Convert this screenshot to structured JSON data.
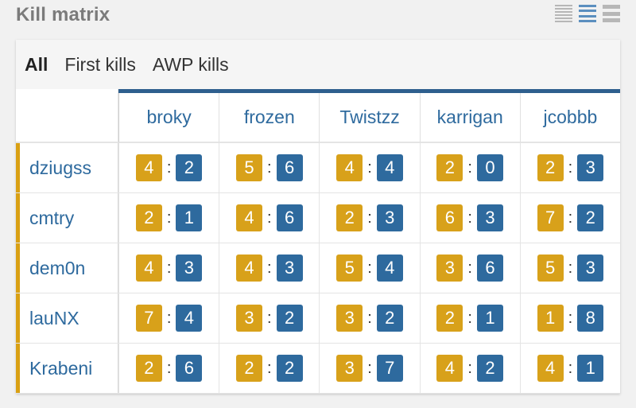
{
  "header": {
    "title": "Kill matrix",
    "view_icons": [
      "list-dense-icon",
      "list-medium-icon",
      "list-wide-icon"
    ]
  },
  "tabs": [
    {
      "label": "All",
      "active": true
    },
    {
      "label": "First kills",
      "active": false
    },
    {
      "label": "AWP kills",
      "active": false
    }
  ],
  "matrix": {
    "columns": [
      "broky",
      "frozen",
      "Twistzz",
      "karrigan",
      "jcobbb"
    ],
    "rows": [
      {
        "player": "dziugss",
        "cells": [
          [
            4,
            2
          ],
          [
            5,
            6
          ],
          [
            4,
            4
          ],
          [
            2,
            0
          ],
          [
            2,
            3
          ]
        ]
      },
      {
        "player": "cmtry",
        "cells": [
          [
            2,
            1
          ],
          [
            4,
            6
          ],
          [
            2,
            3
          ],
          [
            6,
            3
          ],
          [
            7,
            2
          ]
        ]
      },
      {
        "player": "dem0n",
        "cells": [
          [
            4,
            3
          ],
          [
            4,
            3
          ],
          [
            5,
            4
          ],
          [
            3,
            6
          ],
          [
            5,
            3
          ]
        ]
      },
      {
        "player": "lauNX",
        "cells": [
          [
            7,
            4
          ],
          [
            3,
            2
          ],
          [
            3,
            2
          ],
          [
            2,
            1
          ],
          [
            1,
            8
          ]
        ]
      },
      {
        "player": "Krabeni",
        "cells": [
          [
            2,
            6
          ],
          [
            2,
            2
          ],
          [
            3,
            7
          ],
          [
            4,
            2
          ],
          [
            4,
            1
          ]
        ]
      }
    ]
  },
  "colors": {
    "kills_badge": "#d8a11a",
    "deaths_badge": "#2e6a9e",
    "row_accent": "#d9a013",
    "header_accent": "#2e5f8e"
  }
}
